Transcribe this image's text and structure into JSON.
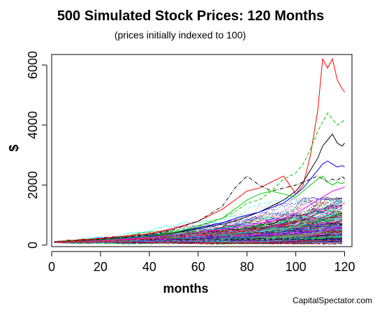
{
  "chart_data": {
    "type": "line",
    "title": "500 Simulated Stock Prices: 120 Months",
    "subtitle": "(prices initially indexed to 100)",
    "xlabel": "months",
    "ylabel": "$",
    "xlim": [
      0,
      123
    ],
    "ylim": [
      -50,
      6350
    ],
    "x_ticks": [
      0,
      20,
      40,
      60,
      80,
      100,
      120
    ],
    "y_ticks": [
      0,
      2000,
      4000,
      6000
    ],
    "grid": false,
    "legend": "none",
    "series_count": 500,
    "colors": [
      "#000000",
      "#ff0000",
      "#00cd00",
      "#0000ff",
      "#00ffff",
      "#ff00ff",
      "#bebebe"
    ],
    "x": [
      1,
      10,
      20,
      30,
      40,
      50,
      60,
      70,
      75,
      80,
      85,
      90,
      95,
      100,
      103,
      106,
      109,
      111,
      113,
      115,
      117,
      119,
      120
    ],
    "series": [
      {
        "values": [
          100,
          150,
          220,
          300,
          380,
          560,
          800,
          1200,
          1500,
          1800,
          1900,
          2100,
          2300,
          1700,
          2000,
          3000,
          4500,
          6200,
          5900,
          6200,
          5500,
          5200,
          5100
        ]
      },
      {
        "values": [
          100,
          130,
          180,
          250,
          340,
          470,
          650,
          900,
          1100,
          1400,
          1500,
          1800,
          2200,
          2400,
          2700,
          3200,
          3800,
          4100,
          4400,
          4200,
          4000,
          4100,
          4200
        ]
      },
      {
        "values": [
          100,
          140,
          200,
          260,
          350,
          520,
          800,
          1300,
          1900,
          2300,
          2000,
          1800,
          1900,
          2000,
          2100,
          2200,
          2300,
          2200,
          2100,
          2200,
          2150,
          2300,
          2200
        ]
      },
      {
        "values": [
          100,
          120,
          160,
          220,
          300,
          400,
          550,
          700,
          800,
          950,
          1100,
          1300,
          1500,
          1800,
          2100,
          2500,
          2900,
          3300,
          3500,
          3700,
          3400,
          3300,
          3400
        ]
      },
      {
        "values": [
          100,
          125,
          170,
          230,
          320,
          420,
          580,
          750,
          880,
          1000,
          1100,
          1250,
          1400,
          1700,
          1900,
          2200,
          2500,
          2700,
          2800,
          2700,
          2600,
          2650,
          2600
        ]
      },
      {
        "values": [
          100,
          125,
          165,
          220,
          300,
          420,
          620,
          900,
          1200,
          1500,
          1700,
          1800,
          1700,
          1600,
          1800,
          2000,
          2200,
          2300,
          2100,
          2000,
          2100,
          2050,
          2100
        ]
      },
      {
        "values": [
          100,
          120,
          150,
          200,
          260,
          330,
          420,
          520,
          580,
          650,
          720,
          800,
          900,
          1050,
          1200,
          1350,
          1500,
          1600,
          1700,
          1800,
          1850,
          1900,
          1950
        ]
      },
      {
        "values": [
          100,
          115,
          140,
          170,
          210,
          260,
          320,
          390,
          430,
          480,
          530,
          600,
          680,
          780,
          870,
          960,
          1050,
          1120,
          1180,
          1250,
          1300,
          1350,
          1400
        ]
      }
    ]
  },
  "credit": "CapitalSpectator.com"
}
